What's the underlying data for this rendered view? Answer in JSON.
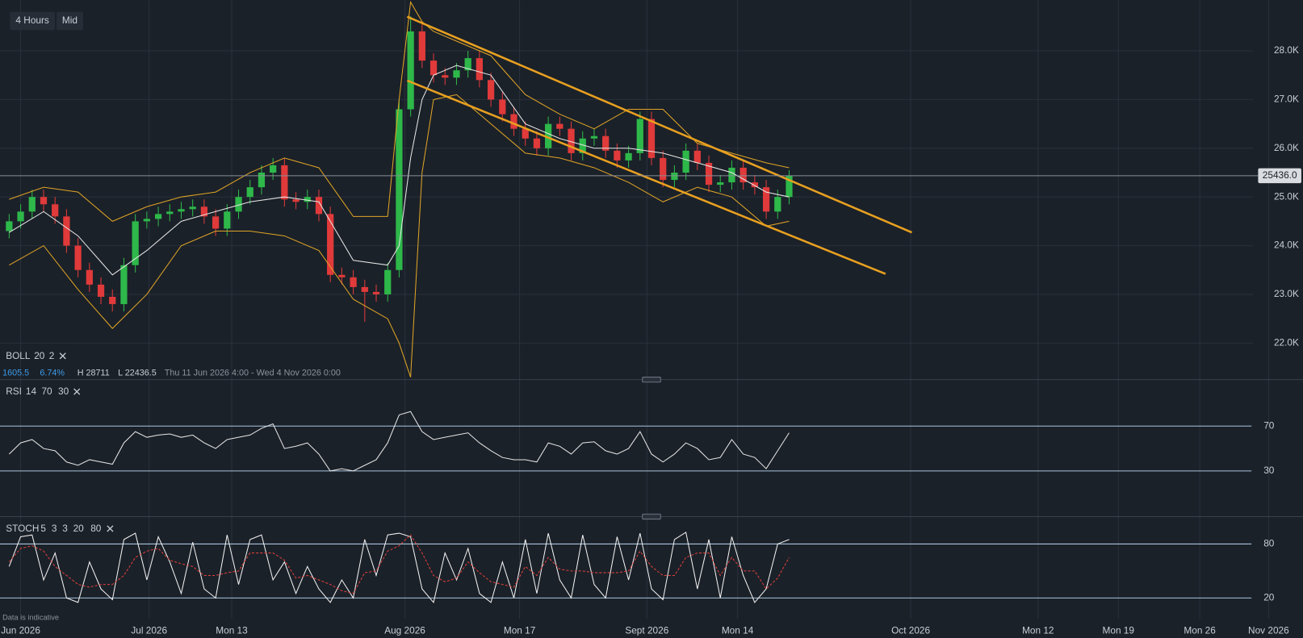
{
  "toolbar": {
    "interval": "4 Hours",
    "price_type": "Mid"
  },
  "disclaimer": "Data is indicative",
  "chart_data": [
    {
      "type": "candlestick",
      "indicator": {
        "name": "BOLL",
        "params": [
          "20",
          "2"
        ]
      },
      "info": {
        "change": "1605.5",
        "change_pct": "6.74%",
        "high": "H 28711",
        "low": "L 22436.5",
        "range": "Thu 11 Jun 2026 4:00 - Wed 4 Nov 2026 0:00"
      },
      "up_color": "#2eb84a",
      "down_color": "#e03a3a",
      "x": [
        -1,
        0,
        1,
        2,
        3,
        4,
        5,
        6,
        7,
        8,
        9,
        10,
        11,
        12,
        13,
        14,
        15,
        16,
        17,
        18,
        19,
        20,
        21,
        22,
        23,
        24,
        25,
        26,
        27,
        28,
        29,
        30,
        31,
        32,
        33,
        34,
        35,
        36,
        37,
        38,
        39,
        40,
        41,
        42,
        43,
        44,
        45,
        46,
        47,
        48,
        49,
        50,
        51,
        52,
        53,
        54,
        55,
        56,
        57,
        58,
        59,
        60,
        61,
        62,
        63,
        64,
        65,
        66,
        67
      ],
      "open": [
        24300,
        24500,
        24700,
        25000,
        24850,
        24600,
        24000,
        23500,
        23200,
        22950,
        22800,
        23600,
        24500,
        24550,
        24650,
        24700,
        24750,
        24800,
        24600,
        24350,
        24700,
        25000,
        25200,
        25500,
        25650,
        24950,
        24900,
        25000,
        24650,
        23400,
        23350,
        23150,
        23050,
        23000,
        23500,
        26800,
        28400,
        27800,
        27500,
        27450,
        27600,
        27850,
        27400,
        27000,
        26700,
        26400,
        26200,
        26000,
        26500,
        26400,
        25900,
        26200,
        26250,
        25950,
        25750,
        25900,
        26600,
        25800,
        25350,
        25500,
        25950,
        25700,
        25250,
        25300,
        25600,
        25300,
        25200,
        24700,
        25000
      ],
      "high": [
        24650,
        24850,
        25150,
        25150,
        25000,
        24750,
        24150,
        23650,
        23350,
        23100,
        23750,
        24650,
        24700,
        24800,
        24850,
        24900,
        24950,
        24950,
        24750,
        24850,
        25150,
        25350,
        25650,
        25800,
        25800,
        25100,
        25150,
        25150,
        24800,
        23550,
        23500,
        23300,
        23200,
        23650,
        27000,
        28711,
        28550,
        27950,
        27650,
        27750,
        28000,
        28000,
        27550,
        27150,
        26850,
        26550,
        26350,
        26650,
        26650,
        26550,
        26350,
        26400,
        26400,
        26100,
        26050,
        26750,
        26750,
        25950,
        25650,
        26100,
        26100,
        25850,
        25450,
        25750,
        25750,
        25450,
        25350,
        25150,
        25550
      ],
      "low": [
        24150,
        24350,
        24550,
        24700,
        24450,
        23850,
        23350,
        23050,
        22800,
        22650,
        22650,
        23450,
        24350,
        24400,
        24500,
        24550,
        24600,
        24450,
        24200,
        24200,
        24550,
        24850,
        25050,
        25350,
        24800,
        24750,
        24750,
        24500,
        23250,
        23200,
        23000,
        22436.5,
        22850,
        22850,
        23350,
        26650,
        27650,
        27350,
        27300,
        27300,
        27450,
        27250,
        26850,
        26550,
        26250,
        26050,
        25850,
        25850,
        26250,
        25750,
        25750,
        26050,
        25800,
        25600,
        25600,
        25750,
        25650,
        25200,
        25200,
        25350,
        25550,
        25100,
        25100,
        25150,
        25150,
        25050,
        24550,
        24550,
        24850
      ],
      "close": [
        24500,
        24700,
        25000,
        24850,
        24600,
        24000,
        23500,
        23200,
        22950,
        22800,
        23600,
        24500,
        24550,
        24650,
        24700,
        24750,
        24800,
        24600,
        24350,
        24700,
        25000,
        25200,
        25500,
        25650,
        24950,
        24900,
        25000,
        24650,
        23400,
        23350,
        23150,
        23050,
        23000,
        23500,
        26800,
        28400,
        27800,
        27500,
        27450,
        27600,
        27850,
        27400,
        27000,
        26700,
        26400,
        26200,
        26000,
        26500,
        26400,
        25900,
        26200,
        26250,
        25950,
        25750,
        25900,
        26600,
        25800,
        25350,
        25500,
        25950,
        25700,
        25250,
        25300,
        25600,
        25300,
        25200,
        24700,
        25000,
        25436
      ],
      "bollinger": {
        "band_color": "#e0a526",
        "middle_color": "#e8e8e8",
        "x": [
          -1,
          2,
          5,
          8,
          11,
          14,
          17,
          20,
          23,
          26,
          29,
          32,
          33,
          34,
          35,
          36,
          38,
          41,
          44,
          47,
          50,
          53,
          56,
          59,
          62,
          65,
          67
        ],
        "upper": [
          24950,
          25200,
          25100,
          24500,
          24800,
          25000,
          25100,
          25500,
          25800,
          25600,
          24600,
          24600,
          27000,
          29000,
          28600,
          28400,
          28200,
          27900,
          27100,
          26700,
          26400,
          26800,
          26800,
          26100,
          25900,
          25700,
          25600
        ],
        "middle": [
          24270,
          24700,
          24200,
          23400,
          23900,
          24500,
          24700,
          24900,
          25000,
          24900,
          23700,
          23600,
          24000,
          25800,
          27000,
          27500,
          27700,
          27500,
          26500,
          26200,
          26000,
          26000,
          25900,
          25700,
          25500,
          25100,
          25000
        ],
        "lower": [
          23600,
          24000,
          23100,
          22300,
          23000,
          24000,
          24300,
          24300,
          24200,
          23900,
          22900,
          22500,
          22000,
          21300,
          25500,
          27000,
          27100,
          26500,
          25900,
          25800,
          25600,
          25300,
          24900,
          25200,
          25000,
          24400,
          24500
        ]
      },
      "trendline_color": "#e8a020",
      "trendlines": [
        {
          "x": [
            33.7,
            77.7
          ],
          "values": [
            28700,
            24270
          ]
        },
        {
          "x": [
            33.7,
            75.4
          ],
          "values": [
            27390,
            23420
          ]
        }
      ],
      "last_price": {
        "value": 25436,
        "label": "25436.0"
      },
      "ylim": [
        21250,
        29040
      ],
      "yticks": [
        {
          "value": 22000,
          "label": "22.0K"
        },
        {
          "value": 23000,
          "label": "23.0K"
        },
        {
          "value": 24000,
          "label": "24.0K"
        },
        {
          "value": 25000,
          "label": "25.0K"
        },
        {
          "value": 26000,
          "label": "26.0K"
        },
        {
          "value": 27000,
          "label": "27.0K"
        },
        {
          "value": 28000,
          "label": "28.0K"
        }
      ],
      "grid": true
    },
    {
      "type": "line",
      "title": "RSI",
      "params": [
        "14",
        "70",
        "30"
      ],
      "series": [
        {
          "color": "#e6e6e6",
          "values": [
            45,
            55,
            58,
            50,
            48,
            38,
            35,
            40,
            38,
            36,
            55,
            65,
            60,
            62,
            63,
            60,
            62,
            55,
            50,
            58,
            60,
            62,
            68,
            72,
            50,
            52,
            55,
            45,
            30,
            32,
            30,
            35,
            40,
            55,
            80,
            83,
            65,
            58,
            60,
            62,
            64,
            55,
            48,
            42,
            40,
            40,
            38,
            55,
            52,
            45,
            55,
            56,
            48,
            45,
            50,
            65,
            45,
            38,
            45,
            55,
            50,
            40,
            42,
            58,
            45,
            42,
            32,
            48,
            64
          ]
        }
      ],
      "ylim": [
        -9.3,
        107.8
      ],
      "yticks": [
        30,
        70
      ]
    },
    {
      "type": "line",
      "title": "STOCH",
      "params": [
        "5",
        "3",
        "3",
        "20",
        "80"
      ],
      "series": [
        {
          "color": "#f2f2f2",
          "values": [
            55,
            88,
            90,
            40,
            70,
            20,
            15,
            60,
            30,
            18,
            85,
            92,
            40,
            88,
            60,
            25,
            82,
            30,
            20,
            90,
            35,
            85,
            90,
            40,
            60,
            25,
            55,
            30,
            15,
            40,
            20,
            85,
            45,
            90,
            92,
            88,
            30,
            15,
            70,
            40,
            75,
            25,
            15,
            60,
            20,
            85,
            25,
            92,
            40,
            20,
            90,
            35,
            20,
            88,
            40,
            92,
            30,
            18,
            85,
            93,
            30,
            85,
            20,
            88,
            45,
            15,
            30,
            80,
            85
          ]
        },
        {
          "color": "#e0403a",
          "dashed": true,
          "values": [
            60,
            75,
            78,
            72,
            55,
            45,
            35,
            32,
            35,
            35,
            45,
            65,
            72,
            75,
            62,
            58,
            55,
            45,
            45,
            48,
            50,
            70,
            70,
            70,
            62,
            42,
            45,
            40,
            35,
            28,
            25,
            48,
            50,
            72,
            78,
            90,
            70,
            45,
            38,
            42,
            60,
            48,
            38,
            35,
            32,
            55,
            45,
            65,
            52,
            50,
            50,
            48,
            48,
            48,
            50,
            72,
            55,
            45,
            45,
            65,
            70,
            70,
            45,
            65,
            50,
            50,
            30,
            42,
            65
          ]
        }
      ],
      "ylim": [
        -3.1,
        104.9
      ],
      "yticks": [
        20,
        80
      ],
      "xlim": [
        -1.8,
        111.8
      ],
      "xticks": [
        {
          "value": 0,
          "label": "Jun 2026"
        },
        {
          "value": 11.2,
          "label": "Jul 2026"
        },
        {
          "value": 18.4,
          "label": "Mon 13"
        },
        {
          "value": 33.5,
          "label": "Aug 2026"
        },
        {
          "value": 43.5,
          "label": "Mon 17"
        },
        {
          "value": 54.6,
          "label": "Sept 2026"
        },
        {
          "value": 62.5,
          "label": "Mon 14"
        },
        {
          "value": 77.6,
          "label": "Oct 2026"
        },
        {
          "value": 88.7,
          "label": "Mon 12"
        },
        {
          "value": 95.7,
          "label": "Mon 19"
        },
        {
          "value": 102.8,
          "label": "Mon 26"
        },
        {
          "value": 108.8,
          "label": "Nov 2026"
        }
      ]
    }
  ]
}
